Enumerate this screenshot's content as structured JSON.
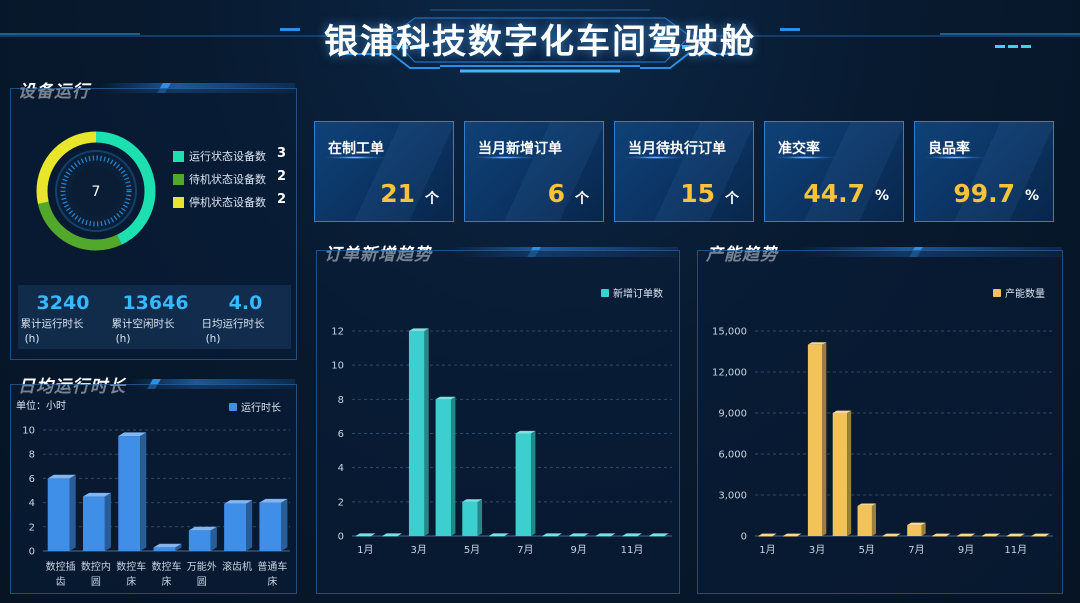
{
  "header": {
    "title": "银浦科技数字化车间驾驶舱"
  },
  "equipment": {
    "title": "设备运行",
    "center_value": "7",
    "legend": [
      {
        "label": "运行状态设备数",
        "count": "3",
        "color": "#1de0b0"
      },
      {
        "label": "待机状态设备数",
        "count": "2",
        "color": "#52a82a"
      },
      {
        "label": "停机状态设备数",
        "count": "2",
        "color": "#e8e62a"
      }
    ],
    "stats": [
      {
        "value": "3240",
        "label": "累计运行时长",
        "unit": "(h)"
      },
      {
        "value": "13646",
        "label": "累计空闲时长",
        "unit": "(h)"
      },
      {
        "value": "4.0",
        "label": "日均运行时长",
        "unit": "(h)"
      }
    ]
  },
  "kpis": [
    {
      "label": "在制工单",
      "value": "21",
      "unit": "个"
    },
    {
      "label": "当月新增订单",
      "value": "6",
      "unit": "个"
    },
    {
      "label": "当月待执行订单",
      "value": "15",
      "unit": "个"
    },
    {
      "label": "准交率",
      "value": "44.7",
      "unit": "%"
    },
    {
      "label": "良品率",
      "value": "99.7",
      "unit": "%"
    }
  ],
  "sections": {
    "daily_runtime": "日均运行时长",
    "order_trend": "订单新增趋势",
    "capacity_trend": "产能趋势"
  },
  "chart_data": [
    {
      "id": "daily-runtime",
      "type": "bar",
      "unit_label": "单位：小时",
      "legend": "运行时长",
      "color": "#3f8fe8",
      "categories": [
        [
          "数控插",
          "齿"
        ],
        [
          "数控内",
          "圆"
        ],
        [
          "数控车",
          "床"
        ],
        [
          "数控车",
          "床"
        ],
        [
          "万能外",
          "圆"
        ],
        [
          "滚齿机",
          ""
        ],
        [
          "普通车",
          "床"
        ]
      ],
      "values": [
        6.0,
        4.5,
        9.5,
        0.3,
        1.7,
        3.9,
        4.0
      ],
      "ylim": [
        0,
        10
      ],
      "yticks": [
        "0",
        "2",
        "4",
        "6",
        "8",
        "10"
      ]
    },
    {
      "id": "order-trend",
      "type": "bar",
      "legend": "新增订单数",
      "color": "#3ccfcf",
      "x": [
        "1月",
        "2月",
        "3月",
        "4月",
        "5月",
        "6月",
        "7月",
        "8月",
        "9月",
        "10月",
        "11月",
        "12月"
      ],
      "xticks_shown": [
        "1月",
        "3月",
        "5月",
        "7月",
        "9月",
        "11月"
      ],
      "values": [
        0,
        0,
        12,
        8,
        2,
        0,
        6,
        0,
        0,
        0,
        0,
        0
      ],
      "ylim": [
        0,
        12
      ],
      "yticks": [
        "0",
        "2",
        "4",
        "6",
        "8",
        "10",
        "12"
      ]
    },
    {
      "id": "capacity-trend",
      "type": "bar",
      "legend": "产能数量",
      "color": "#f2c35a",
      "x": [
        "1月",
        "2月",
        "3月",
        "4月",
        "5月",
        "6月",
        "7月",
        "8月",
        "9月",
        "10月",
        "11月",
        "12月"
      ],
      "xticks_shown": [
        "1月",
        "3月",
        "5月",
        "7月",
        "9月",
        "11月"
      ],
      "values": [
        0,
        0,
        14000,
        9000,
        2200,
        0,
        800,
        0,
        0,
        0,
        0,
        0
      ],
      "ylim": [
        0,
        15000
      ],
      "yticks": [
        "0",
        "3,000",
        "6,000",
        "9,000",
        "12,000",
        "15,000"
      ]
    }
  ]
}
